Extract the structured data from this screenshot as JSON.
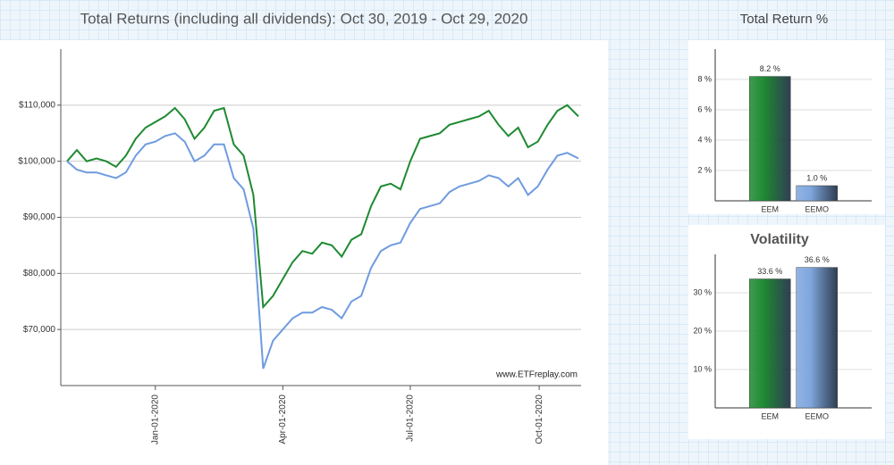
{
  "chart_data": [
    {
      "type": "line",
      "title": "Total Returns (including all dividends): Oct 30, 2019 - Oct 29, 2020",
      "annotation": "www.ETFreplay.com",
      "x": [
        "2019-10-30",
        "2019-11-06",
        "2019-11-13",
        "2019-11-20",
        "2019-11-27",
        "2019-12-04",
        "2019-12-11",
        "2019-12-18",
        "2019-12-25",
        "2020-01-01",
        "2020-01-08",
        "2020-01-15",
        "2020-01-22",
        "2020-01-29",
        "2020-02-05",
        "2020-02-12",
        "2020-02-19",
        "2020-02-26",
        "2020-03-04",
        "2020-03-11",
        "2020-03-18",
        "2020-03-25",
        "2020-04-01",
        "2020-04-08",
        "2020-04-15",
        "2020-04-22",
        "2020-04-29",
        "2020-05-06",
        "2020-05-13",
        "2020-05-20",
        "2020-05-27",
        "2020-06-03",
        "2020-06-10",
        "2020-06-17",
        "2020-06-24",
        "2020-07-01",
        "2020-07-08",
        "2020-07-15",
        "2020-07-22",
        "2020-07-29",
        "2020-08-05",
        "2020-08-12",
        "2020-08-19",
        "2020-08-26",
        "2020-09-02",
        "2020-09-09",
        "2020-09-16",
        "2020-09-23",
        "2020-09-30",
        "2020-10-07",
        "2020-10-14",
        "2020-10-21",
        "2020-10-29"
      ],
      "series": [
        {
          "name": "EEM",
          "color": "#1e8a32",
          "values": [
            100000,
            102000,
            100000,
            100500,
            100000,
            99000,
            101000,
            104000,
            106000,
            107000,
            108000,
            109500,
            107500,
            104000,
            106000,
            109000,
            109500,
            103000,
            101000,
            94000,
            74000,
            76000,
            79000,
            82000,
            84000,
            83500,
            85500,
            85000,
            83000,
            86000,
            87000,
            92000,
            95500,
            96000,
            95000,
            100000,
            104000,
            104500,
            105000,
            106500,
            107000,
            107500,
            108000,
            109000,
            106500,
            104500,
            106000,
            102500,
            103500,
            106500,
            109000,
            110000,
            108000
          ]
        },
        {
          "name": "EEMO",
          "color": "#6f9be0",
          "values": [
            100000,
            98500,
            98000,
            98000,
            97500,
            97000,
            98000,
            101000,
            103000,
            103500,
            104500,
            105000,
            103500,
            100000,
            101000,
            103000,
            103000,
            97000,
            95000,
            88000,
            63000,
            68000,
            70000,
            72000,
            73000,
            73000,
            74000,
            73500,
            72000,
            75000,
            76000,
            81000,
            84000,
            85000,
            85500,
            89000,
            91500,
            92000,
            92500,
            94500,
            95500,
            96000,
            96500,
            97500,
            97000,
            95500,
            97000,
            94000,
            95500,
            98500,
            101000,
            101500,
            100500
          ]
        }
      ],
      "xlim": [
        "2019-10-30",
        "2020-10-29"
      ],
      "xticks": [
        {
          "value": "2020-01-01",
          "label": "Jan-01-2020"
        },
        {
          "value": "2020-04-01",
          "label": "Apr-01-2020"
        },
        {
          "value": "2020-07-01",
          "label": "Jul-01-2020"
        },
        {
          "value": "2020-10-01",
          "label": "Oct-01-2020"
        }
      ],
      "ylim": [
        60000,
        120000
      ],
      "yticks": [
        {
          "value": 70000,
          "label": "$70,000"
        },
        {
          "value": 80000,
          "label": "$80,000"
        },
        {
          "value": 90000,
          "label": "$90,000"
        },
        {
          "value": 100000,
          "label": "$100,000"
        },
        {
          "value": 110000,
          "label": "$110,000"
        }
      ],
      "grid": true
    },
    {
      "type": "bar",
      "title": "Total Return %",
      "categories": [
        "EEM",
        "EEMO"
      ],
      "values": [
        8.2,
        1.0
      ],
      "value_labels": [
        "8.2 %",
        "1.0 %"
      ],
      "colors": [
        "#1e8a32",
        "#7fa6dd"
      ],
      "ylim": [
        0,
        10
      ],
      "yticks": [
        {
          "value": 2,
          "label": "2 %"
        },
        {
          "value": 4,
          "label": "4 %"
        },
        {
          "value": 6,
          "label": "6 %"
        },
        {
          "value": 8,
          "label": "8 %"
        }
      ],
      "grid": true
    },
    {
      "type": "bar",
      "title": "Volatility",
      "categories": [
        "EEM",
        "EEMO"
      ],
      "values": [
        33.6,
        36.6
      ],
      "value_labels": [
        "33.6 %",
        "36.6 %"
      ],
      "colors": [
        "#1e8a32",
        "#7fa6dd"
      ],
      "ylim": [
        0,
        40
      ],
      "yticks": [
        {
          "value": 10,
          "label": "10 %"
        },
        {
          "value": 20,
          "label": "20 %"
        },
        {
          "value": 30,
          "label": "30 %"
        }
      ],
      "grid": true
    }
  ]
}
